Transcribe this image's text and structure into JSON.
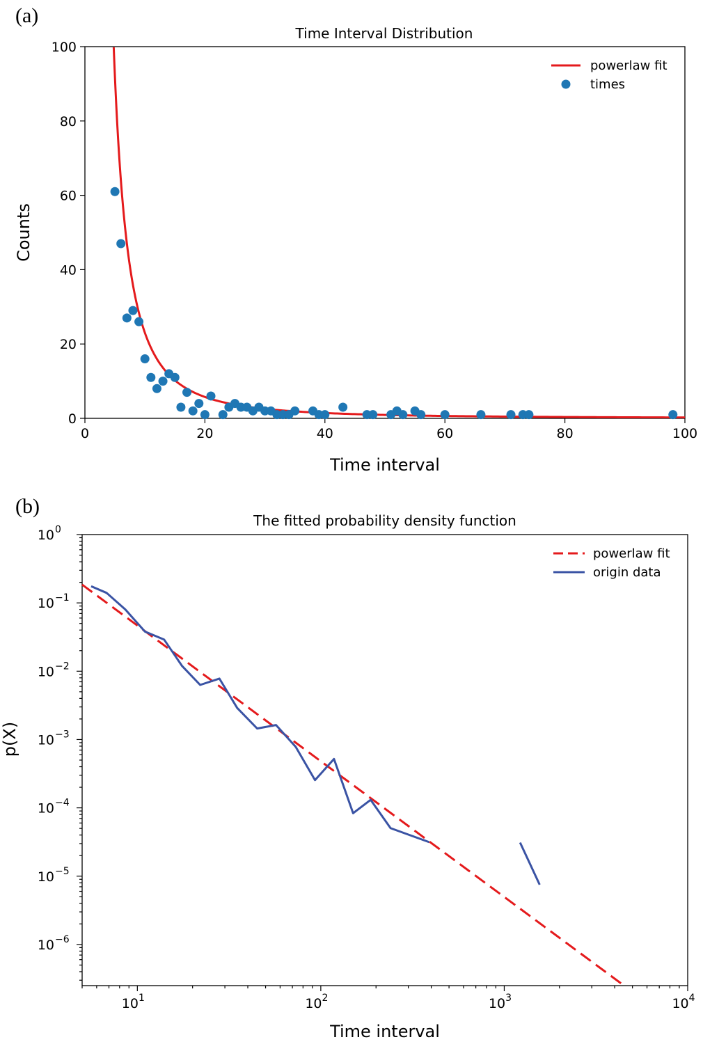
{
  "chart_data": [
    {
      "panel": "(a)",
      "type": "scatter",
      "title": "Time Interval Distribution",
      "xlabel": "Time interval",
      "ylabel": "Counts",
      "xlim": [
        0,
        100
      ],
      "ylim": [
        0,
        100
      ],
      "xticks": [
        "0",
        "20",
        "40",
        "60",
        "80",
        "100"
      ],
      "yticks": [
        "0",
        "20",
        "40",
        "60",
        "80",
        "100"
      ],
      "legend_position": "top-right",
      "colors": {
        "fit": "#e41a1c",
        "points": "#1f77b4"
      },
      "series": [
        {
          "name": "powerlaw fit",
          "kind": "line",
          "coef": 2300,
          "exponent": -2.0,
          "x_start": 4.8,
          "x_end": 100
        },
        {
          "name": "times",
          "kind": "scatter",
          "x": [
            5,
            6,
            7,
            8,
            9,
            10,
            11,
            12,
            13,
            14,
            15,
            16,
            17,
            18,
            19,
            20,
            21,
            23,
            24,
            25,
            26,
            27,
            28,
            29,
            30,
            31,
            32,
            33,
            34,
            35,
            38,
            39,
            40,
            43,
            47,
            48,
            51,
            52,
            53,
            55,
            56,
            60,
            66,
            71,
            73,
            74,
            98
          ],
          "y": [
            61,
            47,
            27,
            29,
            26,
            16,
            11,
            8,
            10,
            12,
            11,
            3,
            7,
            2,
            4,
            1,
            6,
            1,
            3,
            4,
            3,
            3,
            2,
            3,
            2,
            2,
            1,
            1,
            1,
            2,
            2,
            1,
            1,
            3,
            1,
            1,
            1,
            2,
            1,
            2,
            1,
            1,
            1,
            1,
            1,
            1,
            1
          ]
        }
      ]
    },
    {
      "panel": "(b)",
      "type": "line",
      "title": "The fitted probability density function",
      "xlabel": "Time interval",
      "ylabel": "p(X)",
      "xscale": "log",
      "yscale": "log",
      "xlim": [
        5,
        10000
      ],
      "ylim": [
        2.5e-07,
        1
      ],
      "xtick_values": [
        10,
        100,
        1000,
        10000
      ],
      "xtick_exponents": [
        "1",
        "2",
        "3",
        "4"
      ],
      "ytick_values": [
        1,
        0.1,
        0.01,
        0.001,
        0.0001,
        1e-05,
        1e-06
      ],
      "ytick_exponents": [
        "0",
        "−1",
        "−2",
        "−3",
        "−4",
        "−5",
        "−6"
      ],
      "tick_base": "10",
      "legend_position": "top-right",
      "colors": {
        "fit": "#e41a1c",
        "origin": "#3a53a4"
      },
      "series": [
        {
          "name": "powerlaw fit",
          "kind": "dashed-line",
          "x": [
            5,
            4500
          ],
          "y": [
            0.185,
            2.5e-07
          ]
        },
        {
          "name": "origin data",
          "kind": "line",
          "segments": [
            {
              "x": [
                5.6,
                6.8,
                8.6,
                11,
                14,
                17.5,
                22,
                28,
                35,
                45,
                57,
                73,
                93,
                118,
                150,
                187,
                240,
                390
              ],
              "y": [
                0.175,
                0.14,
                0.08,
                0.038,
                0.029,
                0.012,
                0.0063,
                0.0078,
                0.0029,
                0.00145,
                0.00163,
                0.00078,
                0.000255,
                0.00052,
                8.35e-05,
                0.000131,
                5.05e-05,
                3.15e-05
              ]
            },
            {
              "x": [
                1220,
                1560
              ],
              "y": [
                3.1e-05,
                7.5e-06
              ]
            }
          ]
        }
      ]
    }
  ]
}
